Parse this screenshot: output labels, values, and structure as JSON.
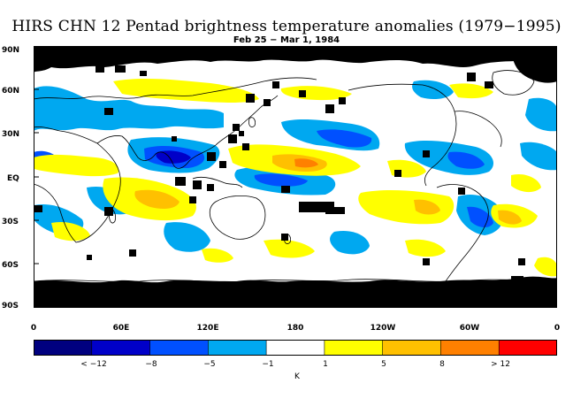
{
  "title": "HIRS CHN 12 Pentad brightness temperature anomalies (1979−1995)",
  "subtitle": "Feb 25 − Mar 1, 1984",
  "lat_labels": [
    "90N",
    "60N",
    "30N",
    "EQ",
    "30S",
    "60S",
    "90S"
  ],
  "lon_labels": [
    "0",
    "60E",
    "120E",
    "180",
    "120W",
    "60W",
    "0"
  ],
  "colorbar": {
    "unit": "K",
    "labels": [
      "< −12",
      "−8",
      "−5",
      "−1",
      "1",
      "5",
      "8",
      "> 12"
    ],
    "colors": [
      "#00007f",
      "#0000c8",
      "#0050ff",
      "#00a8f0",
      "#ffffff",
      "#ffff00",
      "#ffc000",
      "#ff8000",
      "#ff0000"
    ]
  },
  "colors": {
    "missing": "#000000",
    "coastline": "#000000"
  }
}
